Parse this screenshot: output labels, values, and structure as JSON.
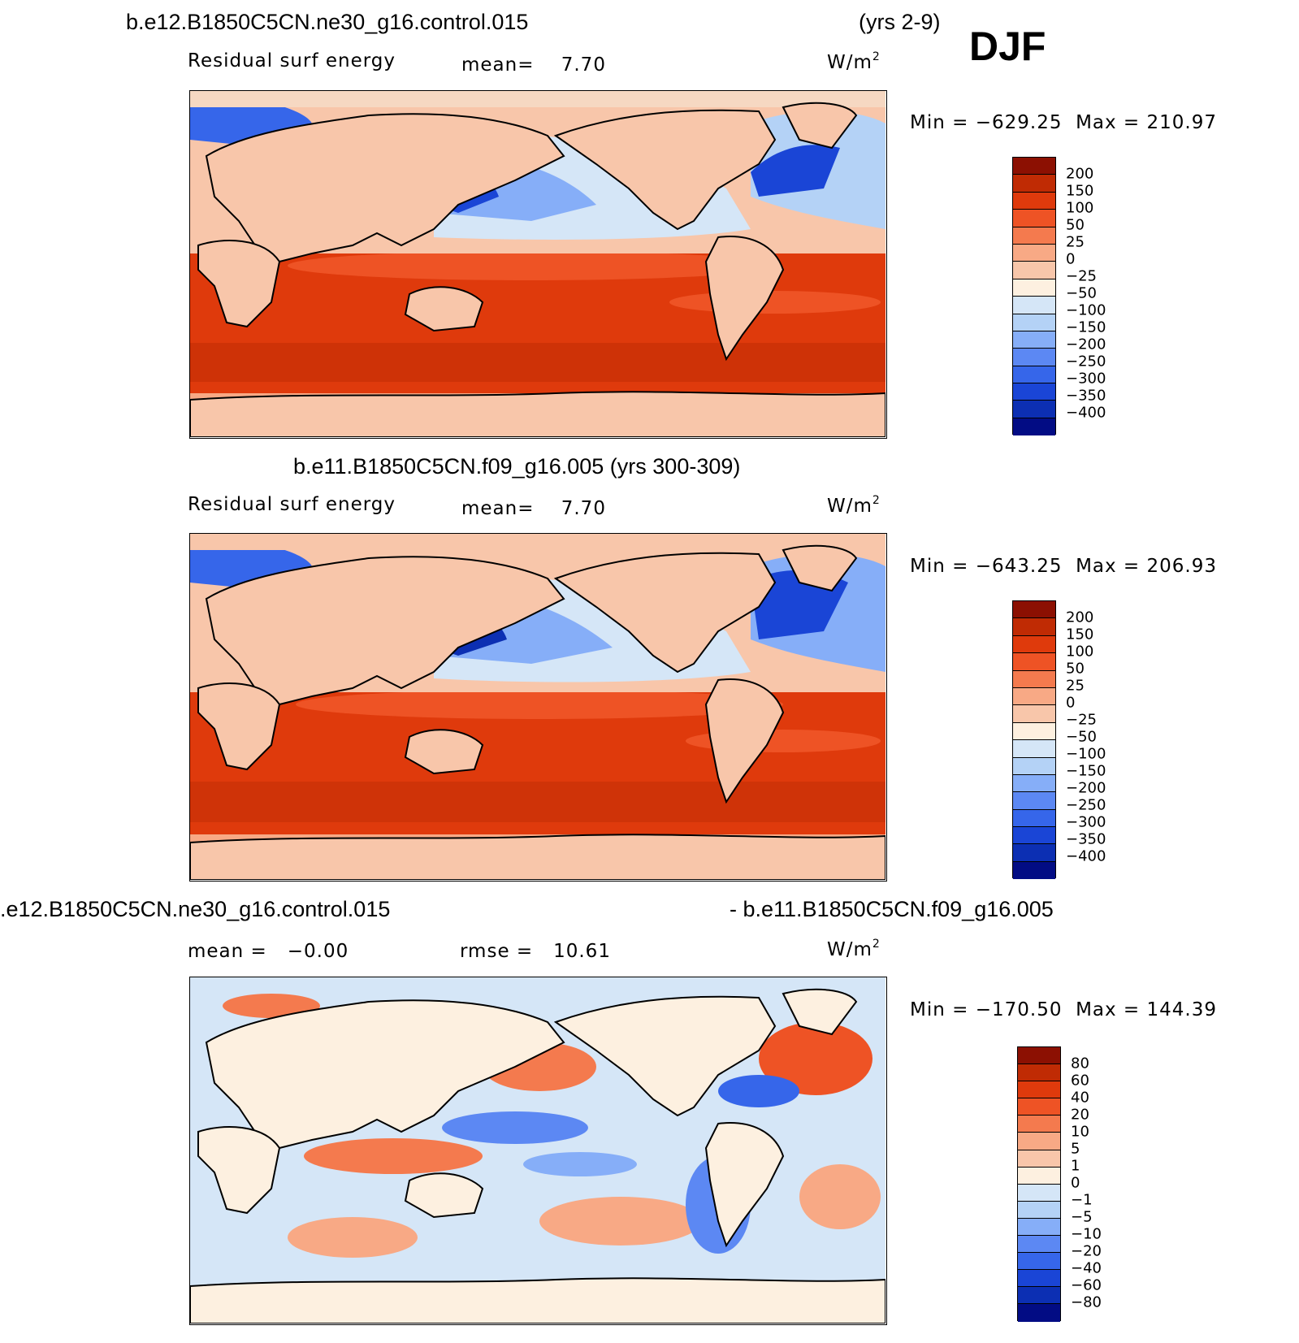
{
  "season_label": "DJF",
  "colors": {
    "pos_palette": [
      "#f6d8c2",
      "#f8c6aa",
      "#f8a985",
      "#f47a4e",
      "#ee5325",
      "#df3a0c",
      "#c02b04",
      "#8c1002"
    ],
    "neg_palette": [
      "#fdf0e0",
      "#d5e6f7",
      "#b4d2f6",
      "#86aef8",
      "#5c88f3",
      "#3666ea",
      "#1a45d6",
      "#0c2fb3",
      "#061c96",
      "#020c84"
    ],
    "land": "#f8c6aa",
    "coastline": "#000000"
  },
  "panels": [
    {
      "title_left": "b.e12.B1850C5CN.ne30_g16.control.015",
      "title_right": "(yrs 2-9)",
      "variable": "Residual surf energy",
      "stat1": "mean=    7.70",
      "units": "W/m",
      "units_exp": "2",
      "minmax": "Min = −629.25  Max = 210.97",
      "colorbar_labels": [
        "200",
        "150",
        "100",
        "50",
        "25",
        "0",
        "−25",
        "−50",
        "−100",
        "−150",
        "−200",
        "−250",
        "−300",
        "−350",
        "−400"
      ]
    },
    {
      "title_center": "b.e11.B1850C5CN.f09_g16.005 (yrs 300-309)",
      "variable": "Residual surf energy",
      "stat1": "mean=    7.70",
      "units": "W/m",
      "units_exp": "2",
      "minmax": "Min = −643.25  Max = 206.93",
      "colorbar_labels": [
        "200",
        "150",
        "100",
        "50",
        "25",
        "0",
        "−25",
        "−50",
        "−100",
        "−150",
        "−200",
        "−250",
        "−300",
        "−350",
        "−400"
      ]
    },
    {
      "title_left": ".e12.B1850C5CN.ne30_g16.control.015",
      "title_right": "- b.e11.B1850C5CN.f09_g16.005",
      "stat1": "mean =   −0.00",
      "stat2": "rmse =   10.61",
      "units": "W/m",
      "units_exp": "2",
      "minmax": "Min = −170.50  Max = 144.39",
      "colorbar_labels": [
        "80",
        "60",
        "40",
        "20",
        "10",
        "5",
        "1",
        "0",
        "−1",
        "−5",
        "−10",
        "−20",
        "−40",
        "−60",
        "−80"
      ]
    }
  ]
}
